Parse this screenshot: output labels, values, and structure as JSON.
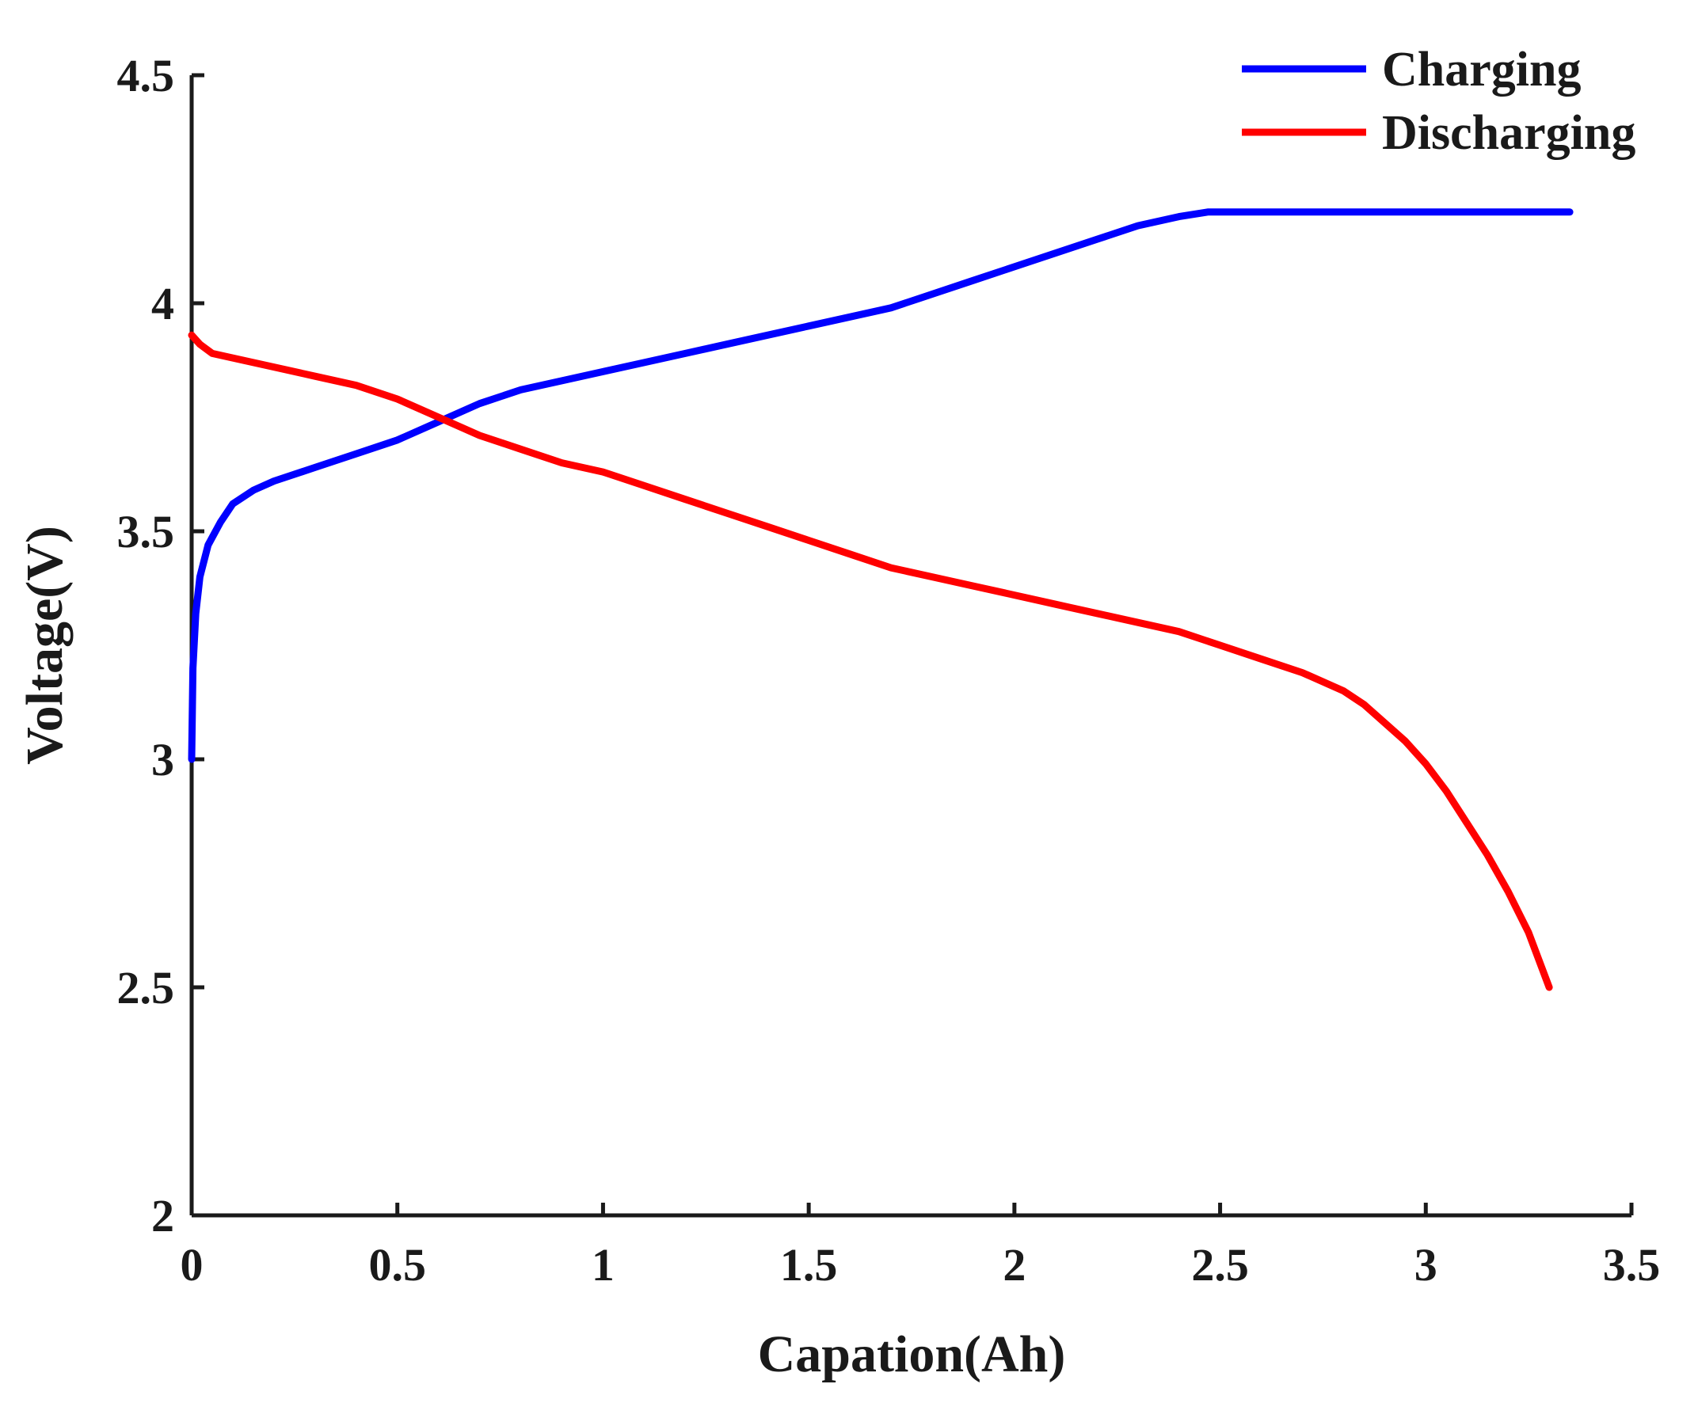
{
  "chart_data": {
    "type": "line",
    "title": "",
    "xlabel": "Capation(Ah)",
    "ylabel": "Voltage(V)",
    "xlim": [
      0,
      3.5
    ],
    "ylim": [
      2,
      4.5
    ],
    "xticks": [
      0,
      0.5,
      1,
      1.5,
      2,
      2.5,
      3,
      3.5
    ],
    "xtick_labels": [
      "0",
      "0.5",
      "1",
      "1.5",
      "2",
      "2.5",
      "3",
      "3.5"
    ],
    "yticks": [
      2,
      2.5,
      3,
      3.5,
      4,
      4.5
    ],
    "ytick_labels": [
      "2",
      "2.5",
      "3",
      "3.5",
      "4",
      "4.5"
    ],
    "grid": false,
    "legend": {
      "position": "top-right",
      "entries": [
        "Charging",
        "Discharging"
      ]
    },
    "series": [
      {
        "name": "Charging",
        "color": "#0000ff",
        "x": [
          0,
          0.003,
          0.01,
          0.02,
          0.04,
          0.07,
          0.1,
          0.15,
          0.2,
          0.3,
          0.4,
          0.5,
          0.6,
          0.7,
          0.8,
          0.9,
          1.0,
          1.1,
          1.2,
          1.3,
          1.4,
          1.5,
          1.6,
          1.7,
          1.8,
          1.9,
          2.0,
          2.1,
          2.2,
          2.3,
          2.4,
          2.47,
          2.6,
          2.8,
          3.0,
          3.2,
          3.35
        ],
        "y": [
          3.0,
          3.2,
          3.32,
          3.4,
          3.47,
          3.52,
          3.56,
          3.59,
          3.61,
          3.64,
          3.67,
          3.7,
          3.74,
          3.78,
          3.81,
          3.83,
          3.85,
          3.87,
          3.89,
          3.91,
          3.93,
          3.95,
          3.97,
          3.99,
          4.02,
          4.05,
          4.08,
          4.11,
          4.14,
          4.17,
          4.19,
          4.2,
          4.2,
          4.2,
          4.2,
          4.2,
          4.2
        ]
      },
      {
        "name": "Discharging",
        "color": "#ff0000",
        "x": [
          0,
          0.02,
          0.05,
          0.1,
          0.2,
          0.3,
          0.4,
          0.5,
          0.6,
          0.7,
          0.8,
          0.9,
          1.0,
          1.1,
          1.2,
          1.3,
          1.4,
          1.5,
          1.6,
          1.7,
          1.8,
          1.9,
          2.0,
          2.1,
          2.2,
          2.3,
          2.4,
          2.5,
          2.6,
          2.7,
          2.8,
          2.85,
          2.9,
          2.95,
          3.0,
          3.05,
          3.1,
          3.15,
          3.2,
          3.25,
          3.3
        ],
        "y": [
          3.93,
          3.91,
          3.89,
          3.88,
          3.86,
          3.84,
          3.82,
          3.79,
          3.75,
          3.71,
          3.68,
          3.65,
          3.63,
          3.6,
          3.57,
          3.54,
          3.51,
          3.48,
          3.45,
          3.42,
          3.4,
          3.38,
          3.36,
          3.34,
          3.32,
          3.3,
          3.28,
          3.25,
          3.22,
          3.19,
          3.15,
          3.12,
          3.08,
          3.04,
          2.99,
          2.93,
          2.86,
          2.79,
          2.71,
          2.62,
          2.5
        ]
      }
    ]
  }
}
